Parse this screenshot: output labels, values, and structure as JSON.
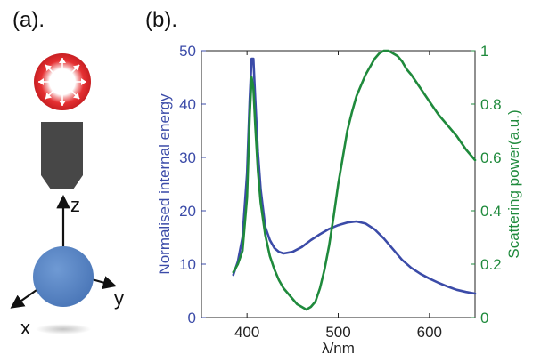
{
  "panel_a": {
    "label": "(a).",
    "axis_labels": {
      "z": "z",
      "y": "y",
      "x": "x"
    },
    "icons": [
      "radiating-source-icon",
      "objective-lens-icon",
      "sphere-icon",
      "shadow-icon"
    ]
  },
  "panel_b": {
    "label": "(b)."
  },
  "colors": {
    "energy": "#3b4ba8",
    "scattering": "#1f8a3c",
    "source": "#e53032",
    "objective": "#474747",
    "sphere": "#5b89c8"
  },
  "chart_data": {
    "type": "line",
    "xlabel": "λ/nm",
    "ylabel_left": "Normalised internal energy",
    "ylabel_right": "Scattering power(a.u.)",
    "xlim": [
      350,
      650
    ],
    "ylim_left": [
      0,
      50
    ],
    "ylim_right": [
      0,
      1
    ],
    "x_ticks": [
      400,
      500,
      600
    ],
    "y_ticks_left": [
      0,
      10,
      20,
      30,
      40,
      50
    ],
    "y_ticks_right": [
      0,
      0.2,
      0.4,
      0.6,
      0.8,
      1
    ],
    "grid": false,
    "legend": "none",
    "series": [
      {
        "axis": "left",
        "points": [
          [
            385,
            8
          ],
          [
            390,
            10.5
          ],
          [
            395,
            15
          ],
          [
            400,
            27
          ],
          [
            403,
            41
          ],
          [
            405,
            48.5
          ],
          [
            407,
            48.5
          ],
          [
            409,
            41
          ],
          [
            412,
            31
          ],
          [
            415,
            24
          ],
          [
            420,
            17
          ],
          [
            425,
            14.5
          ],
          [
            430,
            13
          ],
          [
            435,
            12.3
          ],
          [
            440,
            12
          ],
          [
            450,
            12.3
          ],
          [
            460,
            13.2
          ],
          [
            470,
            14.5
          ],
          [
            480,
            15.6
          ],
          [
            490,
            16.6
          ],
          [
            500,
            17.3
          ],
          [
            510,
            17.8
          ],
          [
            520,
            18
          ],
          [
            530,
            17.6
          ],
          [
            540,
            16.5
          ],
          [
            550,
            14.8
          ],
          [
            560,
            12.8
          ],
          [
            570,
            10.8
          ],
          [
            580,
            9.3
          ],
          [
            590,
            8.2
          ],
          [
            600,
            7.3
          ],
          [
            610,
            6.5
          ],
          [
            620,
            5.8
          ],
          [
            630,
            5.2
          ],
          [
            640,
            4.8
          ],
          [
            650,
            4.5
          ]
        ]
      },
      {
        "axis": "right",
        "points": [
          [
            385,
            0.17
          ],
          [
            390,
            0.2
          ],
          [
            395,
            0.25
          ],
          [
            400,
            0.45
          ],
          [
            403,
            0.76
          ],
          [
            405,
            0.9
          ],
          [
            407,
            0.86
          ],
          [
            409,
            0.72
          ],
          [
            412,
            0.55
          ],
          [
            415,
            0.43
          ],
          [
            420,
            0.31
          ],
          [
            425,
            0.23
          ],
          [
            430,
            0.18
          ],
          [
            435,
            0.14
          ],
          [
            440,
            0.11
          ],
          [
            445,
            0.09
          ],
          [
            450,
            0.07
          ],
          [
            455,
            0.05
          ],
          [
            460,
            0.04
          ],
          [
            465,
            0.03
          ],
          [
            470,
            0.04
          ],
          [
            475,
            0.06
          ],
          [
            480,
            0.11
          ],
          [
            485,
            0.18
          ],
          [
            490,
            0.27
          ],
          [
            495,
            0.38
          ],
          [
            500,
            0.5
          ],
          [
            505,
            0.6
          ],
          [
            510,
            0.7
          ],
          [
            515,
            0.77
          ],
          [
            520,
            0.83
          ],
          [
            525,
            0.87
          ],
          [
            530,
            0.91
          ],
          [
            535,
            0.94
          ],
          [
            540,
            0.97
          ],
          [
            545,
            0.99
          ],
          [
            550,
            1.0
          ],
          [
            555,
            1.0
          ],
          [
            560,
            0.99
          ],
          [
            565,
            0.98
          ],
          [
            570,
            0.96
          ],
          [
            575,
            0.93
          ],
          [
            580,
            0.91
          ],
          [
            590,
            0.86
          ],
          [
            600,
            0.81
          ],
          [
            610,
            0.76
          ],
          [
            620,
            0.72
          ],
          [
            630,
            0.68
          ],
          [
            640,
            0.63
          ],
          [
            650,
            0.59
          ]
        ]
      }
    ]
  }
}
